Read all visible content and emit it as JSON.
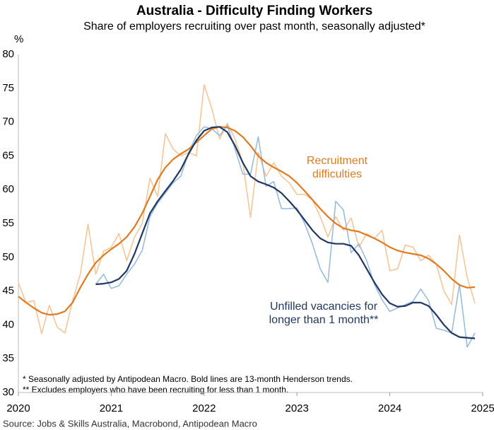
{
  "chart_data": {
    "type": "line",
    "title": "Australia - Difficulty Finding Workers",
    "subtitle": "Share of employers recruiting over past month, seasonally adjusted*",
    "y_label": "%",
    "x": [
      2020,
      2020.083,
      2020.167,
      2020.25,
      2020.333,
      2020.417,
      2020.5,
      2020.583,
      2020.667,
      2020.75,
      2020.833,
      2020.917,
      2021,
      2021.083,
      2021.167,
      2021.25,
      2021.333,
      2021.417,
      2021.5,
      2021.583,
      2021.667,
      2021.75,
      2021.833,
      2021.917,
      2022,
      2022.083,
      2022.167,
      2022.25,
      2022.333,
      2022.417,
      2022.5,
      2022.583,
      2022.667,
      2022.75,
      2022.833,
      2022.917,
      2023,
      2023.083,
      2023.167,
      2023.25,
      2023.333,
      2023.417,
      2023.5,
      2023.583,
      2023.667,
      2023.75,
      2023.833,
      2023.917,
      2024,
      2024.083,
      2024.167,
      2024.25,
      2024.333,
      2024.417,
      2024.5,
      2024.583,
      2024.667,
      2024.75,
      2024.833,
      2024.917
    ],
    "series": [
      {
        "color": "#f8c291",
        "width": 1.5,
        "values": [
          46.2,
          43.3,
          43.6,
          38.7,
          42.9,
          39.7,
          38.8,
          43.5,
          47.5,
          54.9,
          47.5,
          50.9,
          51.5,
          53.5,
          49.5,
          53,
          55,
          61.7,
          59,
          68.3,
          66,
          65,
          65.5,
          65,
          75.5,
          72,
          67.5,
          69.8,
          67.5,
          64,
          55.9,
          65.5,
          62,
          64,
          62,
          61,
          59.3,
          59.3,
          58.5,
          56,
          53,
          56,
          54,
          55.8,
          51.5,
          53.5,
          52.8,
          54,
          48,
          48.3,
          51.8,
          51.5,
          49.5,
          50.3,
          49,
          45,
          43,
          53.3,
          47,
          43.2
        ]
      },
      {
        "color": "#93b9dc",
        "width": 1.5,
        "values": [
          null,
          null,
          null,
          null,
          null,
          null,
          null,
          null,
          null,
          null,
          46,
          47.5,
          45.4,
          45.8,
          47.5,
          49,
          51,
          56,
          58,
          59.5,
          61,
          62,
          65.5,
          68,
          69.3,
          69,
          68,
          69.5,
          66,
          62.3,
          62.3,
          67.8,
          60.5,
          61.2,
          57.2,
          57.2,
          57.3,
          55,
          52,
          48.3,
          46.3,
          58.3,
          57,
          50.7,
          52,
          49.5,
          46,
          43.7,
          42,
          42.5,
          43,
          43.5,
          45.3,
          43.6,
          39.5,
          39.2,
          38.8,
          46,
          36.7,
          38.8
        ]
      },
      {
        "color": "#e07b20",
        "width": 2.2,
        "label": [
          "Recruitment",
          "difficulties"
        ],
        "values": [
          44.2,
          43.3,
          42.5,
          41.8,
          41.5,
          41.6,
          42,
          43.3,
          45.5,
          47.5,
          49.2,
          50.3,
          51.2,
          52,
          53,
          54.5,
          56.5,
          59,
          61.5,
          63.3,
          64.5,
          65.3,
          66,
          67,
          68,
          69,
          69.3,
          69.2,
          68.7,
          67.8,
          66.5,
          65,
          64,
          63.3,
          62.7,
          62,
          61,
          59.8,
          58.5,
          57.2,
          56,
          55,
          54.3,
          54,
          53.8,
          53.3,
          52.8,
          52.2,
          51.5,
          51,
          50.7,
          50.5,
          50.3,
          49.8,
          49,
          48,
          46.8,
          45.9,
          45.5,
          45.6
        ]
      },
      {
        "color": "#1f3864",
        "width": 2.2,
        "label": [
          "Unfilled vacancies for",
          "longer than 1 month**"
        ],
        "values": [
          null,
          null,
          null,
          null,
          null,
          null,
          null,
          null,
          null,
          null,
          46,
          46.1,
          46.3,
          46.8,
          48,
          50.5,
          53.5,
          56.5,
          58.3,
          59.8,
          61.3,
          63,
          65.3,
          67.3,
          68.7,
          69.2,
          69.3,
          68.5,
          66.5,
          64,
          62,
          61.2,
          60.8,
          60.3,
          59.5,
          58.3,
          57,
          55.5,
          54,
          52.8,
          52.2,
          52,
          52,
          51.7,
          50.3,
          48.3,
          46.3,
          44.5,
          43.2,
          42.7,
          42.8,
          43.3,
          43.3,
          42.8,
          41.5,
          40,
          38.8,
          38.2,
          38.1,
          38
        ]
      }
    ],
    "xlim": [
      2020,
      2025
    ],
    "xticks": [
      2020,
      2021,
      2022,
      2023,
      2024,
      2025
    ],
    "ylim": [
      30,
      80
    ],
    "yticks": [
      30,
      35,
      40,
      45,
      50,
      55,
      60,
      65,
      70,
      75,
      80
    ],
    "grid": false,
    "footnotes": [
      "* Seasonally adjusted by Antipodean Macro. Bold lines are 13-month Henderson trends.",
      "** Excludes employers who have been recruiting for less than 1 month."
    ],
    "source": "Source: Jobs & Skills Australia, Macrobond, Antipodean Macro"
  }
}
